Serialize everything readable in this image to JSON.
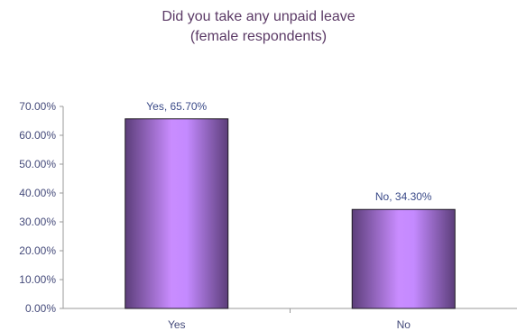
{
  "chart_data": {
    "type": "bar",
    "title_lines": [
      "Did you take any unpaid leave",
      "(female respondents)"
    ],
    "categories": [
      "Yes",
      "No"
    ],
    "values": [
      65.7,
      34.3
    ],
    "data_labels": [
      "Yes, 65.70%",
      "No, 34.30%"
    ],
    "y_ticks": [
      "0.00%",
      "10.00%",
      "20.00%",
      "30.00%",
      "40.00%",
      "50.00%",
      "60.00%",
      "70.00%"
    ],
    "ylim": [
      0,
      70
    ],
    "grid": false,
    "legend": "none",
    "colors": {
      "bar_center": "#c98cff",
      "bar_edge": "#5c3e7a",
      "axis": "#9a9a9a",
      "title": "#5b3a66"
    }
  }
}
